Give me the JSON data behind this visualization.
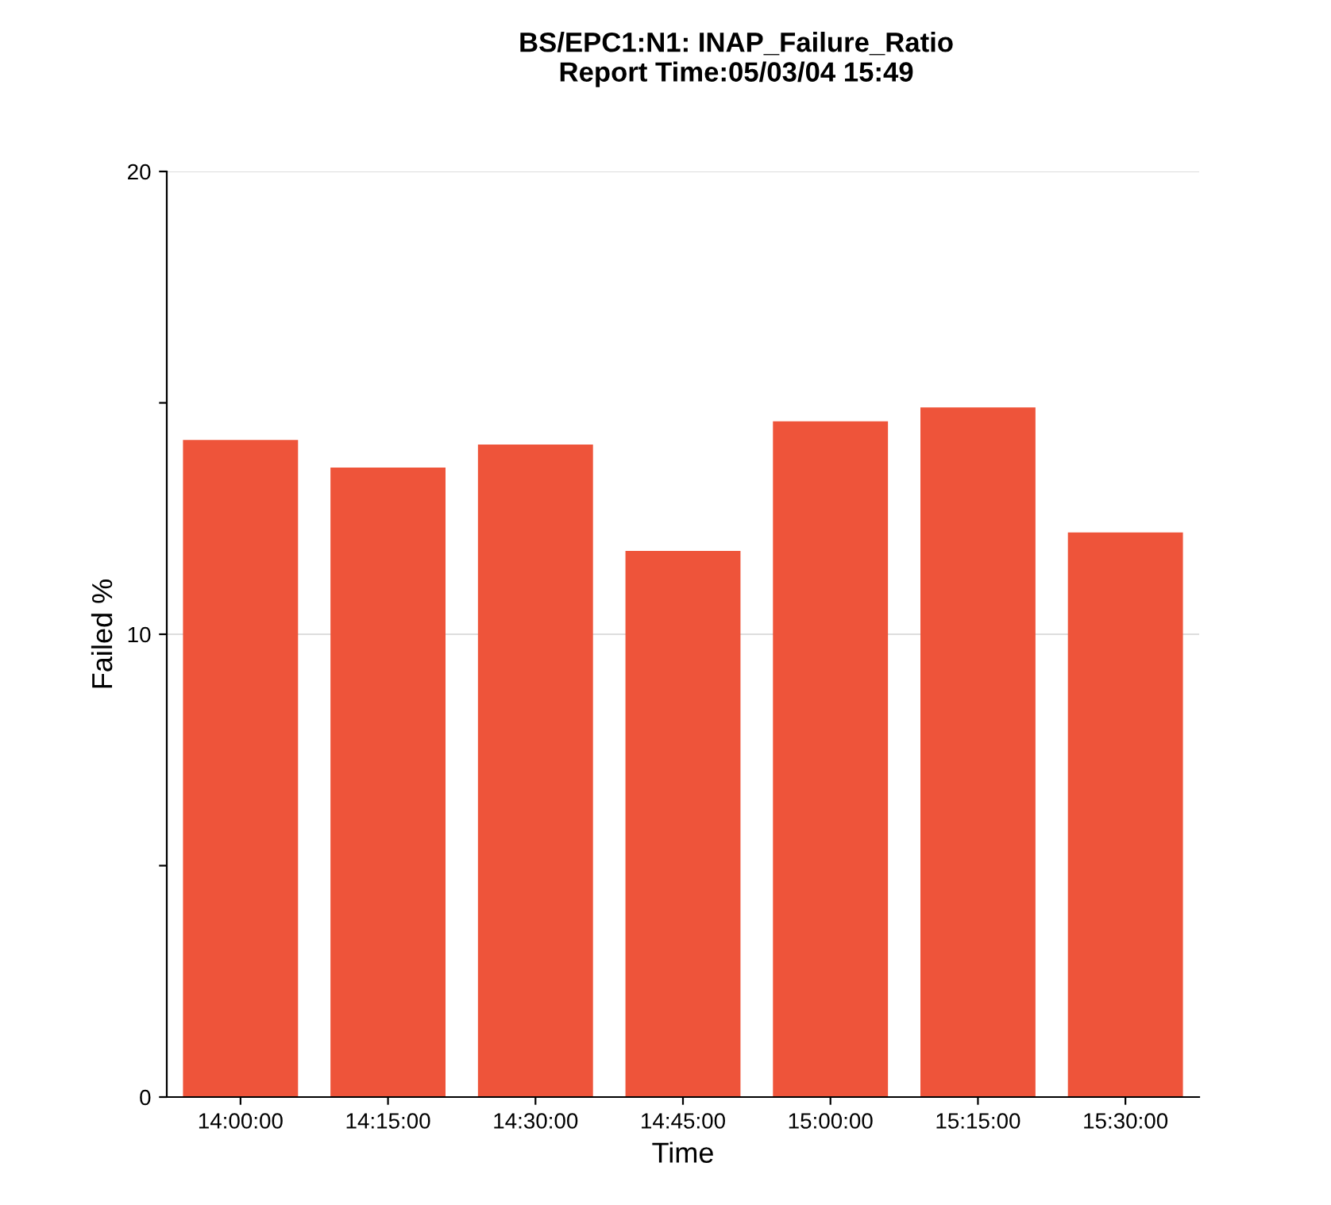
{
  "chart_data": {
    "type": "bar",
    "title": "BS/EPC1:N1: INAP_Failure_Ratio\nReport Time:05/03/04 15:49",
    "xlabel": "Time",
    "ylabel": "Failed %",
    "categories": [
      "14:00:00",
      "14:15:00",
      "14:30:00",
      "14:45:00",
      "15:00:00",
      "15:15:00",
      "15:30:00"
    ],
    "values": [
      14.2,
      13.6,
      14.1,
      11.8,
      14.6,
      14.9,
      12.2
    ],
    "color": "#ee543a",
    "ylim": [
      0,
      20
    ],
    "yticks": [
      0,
      {
        "value": 5,
        "label": null
      },
      10,
      {
        "value": 15,
        "label": null
      },
      20
    ],
    "grid": "y"
  }
}
